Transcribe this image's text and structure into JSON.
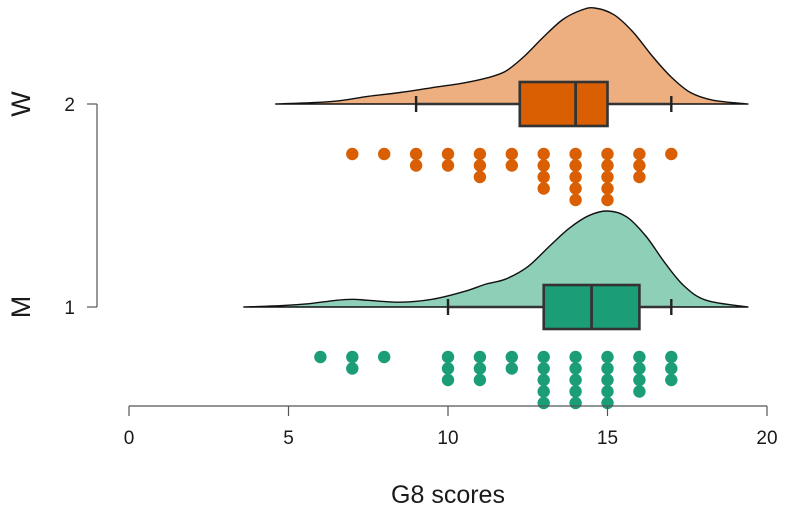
{
  "chart_data": {
    "type": "raincloud",
    "xlabel": "G8 scores",
    "xlim": [
      0,
      20
    ],
    "xticks": [
      0,
      5,
      10,
      15,
      20
    ],
    "xtick_labels": [
      "0",
      "5",
      "10",
      "15",
      "20"
    ],
    "yticks": [
      1,
      2
    ],
    "ytick_labels": [
      "1",
      "2"
    ],
    "series": [
      {
        "name": "W",
        "y": 2,
        "color_fill": "#EDAF80",
        "color_box": "#D95F02",
        "box": {
          "whisker_low": 9,
          "q1": 12.25,
          "median": 14,
          "q3": 15,
          "whisker_high": 17
        },
        "density_range": [
          4.6,
          19.4
        ],
        "density": [
          [
            4.6,
            0.0
          ],
          [
            5.5,
            0.01
          ],
          [
            6.5,
            0.03
          ],
          [
            7.5,
            0.08
          ],
          [
            8.5,
            0.12
          ],
          [
            9.5,
            0.17
          ],
          [
            10.5,
            0.22
          ],
          [
            11.2,
            0.27
          ],
          [
            11.8,
            0.34
          ],
          [
            12.4,
            0.5
          ],
          [
            13.0,
            0.7
          ],
          [
            13.6,
            0.88
          ],
          [
            14.2,
            0.98
          ],
          [
            14.6,
            1.0
          ],
          [
            15.2,
            0.93
          ],
          [
            15.8,
            0.75
          ],
          [
            16.4,
            0.5
          ],
          [
            17.0,
            0.28
          ],
          [
            17.6,
            0.12
          ],
          [
            18.3,
            0.04
          ],
          [
            19.4,
            0.0
          ]
        ],
        "points": [
          {
            "x": 7,
            "n": 1
          },
          {
            "x": 8,
            "n": 1
          },
          {
            "x": 9,
            "n": 2
          },
          {
            "x": 10,
            "n": 2
          },
          {
            "x": 11,
            "n": 3
          },
          {
            "x": 12,
            "n": 2
          },
          {
            "x": 13,
            "n": 4
          },
          {
            "x": 14,
            "n": 5
          },
          {
            "x": 15,
            "n": 5
          },
          {
            "x": 16,
            "n": 3
          },
          {
            "x": 17,
            "n": 1
          }
        ]
      },
      {
        "name": "M",
        "y": 1,
        "color_fill": "#8ECFB8",
        "color_box": "#1B9E77",
        "box": {
          "whisker_low": 10,
          "q1": 13,
          "median": 14.5,
          "q3": 16,
          "whisker_high": 17
        },
        "density_range": [
          3.6,
          19.4
        ],
        "density": [
          [
            3.6,
            0.0
          ],
          [
            4.5,
            0.01
          ],
          [
            5.5,
            0.03
          ],
          [
            6.5,
            0.07
          ],
          [
            7.0,
            0.08
          ],
          [
            7.5,
            0.07
          ],
          [
            8.5,
            0.05
          ],
          [
            9.5,
            0.08
          ],
          [
            10.5,
            0.16
          ],
          [
            11.2,
            0.24
          ],
          [
            11.8,
            0.29
          ],
          [
            12.5,
            0.42
          ],
          [
            13.2,
            0.64
          ],
          [
            13.8,
            0.82
          ],
          [
            14.4,
            0.95
          ],
          [
            15.0,
            1.0
          ],
          [
            15.6,
            0.94
          ],
          [
            16.2,
            0.74
          ],
          [
            16.8,
            0.46
          ],
          [
            17.4,
            0.22
          ],
          [
            18.1,
            0.07
          ],
          [
            19.4,
            0.0
          ]
        ],
        "points": [
          {
            "x": 6,
            "n": 1
          },
          {
            "x": 7,
            "n": 2
          },
          {
            "x": 8,
            "n": 1
          },
          {
            "x": 10,
            "n": 3
          },
          {
            "x": 11,
            "n": 3
          },
          {
            "x": 12,
            "n": 2
          },
          {
            "x": 13,
            "n": 5
          },
          {
            "x": 14,
            "n": 5
          },
          {
            "x": 15,
            "n": 5
          },
          {
            "x": 16,
            "n": 4
          },
          {
            "x": 17,
            "n": 3
          }
        ]
      }
    ]
  }
}
